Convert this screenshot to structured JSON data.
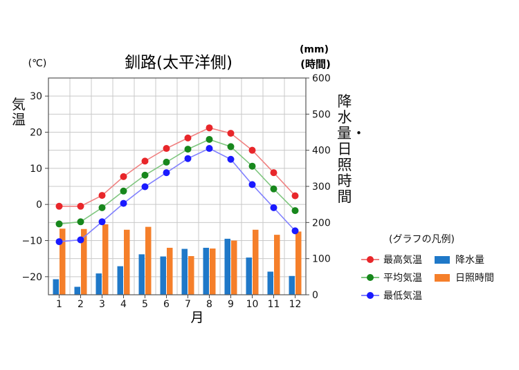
{
  "chart_data": {
    "type": "bar",
    "title": "釧路(太平洋側)",
    "categories": [
      "1",
      "2",
      "3",
      "4",
      "5",
      "6",
      "7",
      "8",
      "9",
      "10",
      "11",
      "12"
    ],
    "xlabel": "月",
    "y_left": {
      "unit": "(℃)",
      "label": "気温",
      "ylim": [
        -25,
        35
      ],
      "ticks": [
        -20,
        -10,
        0,
        10,
        20,
        30
      ]
    },
    "y_right": {
      "unit": [
        "(mm)",
        "(時間)"
      ],
      "label": "降水量・日照時間",
      "ylim": [
        0,
        600
      ],
      "ticks": [
        0,
        100,
        200,
        300,
        400,
        500,
        600
      ]
    },
    "line_series": [
      {
        "name": "最高気温",
        "color": "#e8262a",
        "line_color": "#f08080",
        "values": [
          -0.5,
          -0.5,
          2.5,
          7.7,
          12.0,
          15.5,
          18.4,
          21.2,
          19.7,
          15.0,
          8.8,
          2.4
        ]
      },
      {
        "name": "平均気温",
        "color": "#17871c",
        "line_color": "#7fc67f",
        "values": [
          -5.4,
          -4.8,
          -0.9,
          3.7,
          8.1,
          11.7,
          15.3,
          18.0,
          16.0,
          10.6,
          4.3,
          -1.7
        ]
      },
      {
        "name": "最低気温",
        "color": "#1a1aff",
        "line_color": "#8080ff",
        "values": [
          -10.3,
          -9.8,
          -4.8,
          0.3,
          4.9,
          8.8,
          12.7,
          15.5,
          12.5,
          5.5,
          -0.9,
          -7.3
        ]
      }
    ],
    "bar_series": [
      {
        "name": "降水量",
        "color": "#1f78c8",
        "values": [
          43,
          22,
          59,
          79,
          112,
          106,
          127,
          130,
          155,
          103,
          64,
          52
        ]
      },
      {
        "name": "日照時間",
        "color": "#f57f2a",
        "values": [
          183,
          182,
          195,
          180,
          188,
          130,
          107,
          128,
          150,
          180,
          166,
          175
        ]
      }
    ],
    "grid": true,
    "legend": {
      "title": "(グラフの凡例)",
      "position": "right"
    }
  }
}
